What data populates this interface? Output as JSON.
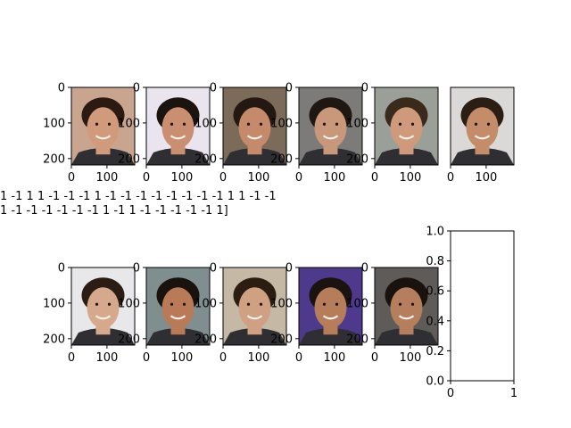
{
  "figure": {
    "caption_lines": [
      "1 -1  1  1 -1 -1 -1  1 -1 -1 -1 -1 -1 -1 -1 -1  1  1 -1 -1",
      "1 -1 -1 -1 -1 -1 -1  1 -1  1 -1 -1 -1 -1 -1  1]"
    ],
    "photo_panels": [
      {
        "row": 0,
        "col": 0,
        "bg": "#c9a58f",
        "tone": "#d19a7a",
        "hair": "#2a1a12"
      },
      {
        "row": 0,
        "col": 1,
        "bg": "#e9e4ee",
        "tone": "#c98f70",
        "hair": "#1b130e"
      },
      {
        "row": 0,
        "col": 2,
        "bg": "#7c6b58",
        "tone": "#c48a69",
        "hair": "#231812"
      },
      {
        "row": 0,
        "col": 3,
        "bg": "#7d7b79",
        "tone": "#c9977a",
        "hair": "#1f1712"
      },
      {
        "row": 0,
        "col": 4,
        "bg": "#9aa097",
        "tone": "#cf9a7c",
        "hair": "#3a2a1c"
      },
      {
        "row": 0,
        "col": 5,
        "bg": "#dad9d7",
        "tone": "#c58c69",
        "hair": "#2b1e14"
      },
      {
        "row": 1,
        "col": 0,
        "bg": "#e8e8ea",
        "tone": "#d7a98c",
        "hair": "#2b1d14"
      },
      {
        "row": 1,
        "col": 1,
        "bg": "#7f8e8f",
        "tone": "#b97b57",
        "hair": "#1a120d"
      },
      {
        "row": 1,
        "col": 2,
        "bg": "#c5b8a5",
        "tone": "#d0a083",
        "hair": "#2c1d13"
      },
      {
        "row": 1,
        "col": 3,
        "bg": "#4e3a8c",
        "tone": "#b67d5b",
        "hair": "#1b130f"
      },
      {
        "row": 1,
        "col": 4,
        "bg": "#5f5b58",
        "tone": "#b57f5e",
        "hair": "#1a120d"
      }
    ]
  },
  "chart_data": [
    {
      "type": "image",
      "row": 0,
      "col": 0,
      "xlim": [
        0,
        178
      ],
      "ylim": [
        218,
        0
      ],
      "xticks": [
        "0",
        "100"
      ],
      "yticks": [
        "0",
        "100",
        "200"
      ]
    },
    {
      "type": "image",
      "row": 0,
      "col": 1,
      "xlim": [
        0,
        178
      ],
      "ylim": [
        218,
        0
      ],
      "xticks": [
        "0",
        "100"
      ],
      "yticks": [
        "0",
        "100",
        "200"
      ]
    },
    {
      "type": "image",
      "row": 0,
      "col": 2,
      "xlim": [
        0,
        178
      ],
      "ylim": [
        218,
        0
      ],
      "xticks": [
        "0",
        "100"
      ],
      "yticks": [
        "0",
        "100",
        "200"
      ]
    },
    {
      "type": "image",
      "row": 0,
      "col": 3,
      "xlim": [
        0,
        178
      ],
      "ylim": [
        218,
        0
      ],
      "xticks": [
        "0",
        "100"
      ],
      "yticks": [
        "0",
        "100",
        "200"
      ]
    },
    {
      "type": "image",
      "row": 0,
      "col": 4,
      "xlim": [
        0,
        178
      ],
      "ylim": [
        218,
        0
      ],
      "xticks": [
        "0",
        "100"
      ],
      "yticks": [
        "0",
        "100",
        "200"
      ]
    },
    {
      "type": "image",
      "row": 0,
      "col": 5,
      "xlim": [
        0,
        178
      ],
      "ylim": [
        218,
        0
      ],
      "xticks": [
        "0",
        "100"
      ],
      "yticks": []
    },
    {
      "type": "image",
      "row": 1,
      "col": 0,
      "xlim": [
        0,
        178
      ],
      "ylim": [
        218,
        0
      ],
      "xticks": [
        "0",
        "100"
      ],
      "yticks": [
        "0",
        "100",
        "200"
      ]
    },
    {
      "type": "image",
      "row": 1,
      "col": 1,
      "xlim": [
        0,
        178
      ],
      "ylim": [
        218,
        0
      ],
      "xticks": [
        "0",
        "100"
      ],
      "yticks": [
        "0",
        "100",
        "200"
      ]
    },
    {
      "type": "image",
      "row": 1,
      "col": 2,
      "xlim": [
        0,
        178
      ],
      "ylim": [
        218,
        0
      ],
      "xticks": [
        "0",
        "100"
      ],
      "yticks": [
        "0",
        "100",
        "200"
      ]
    },
    {
      "type": "image",
      "row": 1,
      "col": 3,
      "xlim": [
        0,
        178
      ],
      "ylim": [
        218,
        0
      ],
      "xticks": [
        "0",
        "100"
      ],
      "yticks": [
        "0",
        "100",
        "200"
      ]
    },
    {
      "type": "image",
      "row": 1,
      "col": 4,
      "xlim": [
        0,
        178
      ],
      "ylim": [
        218,
        0
      ],
      "xticks": [
        "0",
        "100"
      ],
      "yticks": [
        "0",
        "100",
        "200"
      ]
    },
    {
      "type": "empty",
      "row": 1,
      "col": 5,
      "xlim": [
        0,
        1
      ],
      "ylim": [
        0,
        1
      ],
      "xticks": [
        "0",
        "1"
      ],
      "yticks": [
        "0.0",
        "0.2",
        "0.4",
        "0.6",
        "0.8",
        "1.0"
      ]
    }
  ]
}
